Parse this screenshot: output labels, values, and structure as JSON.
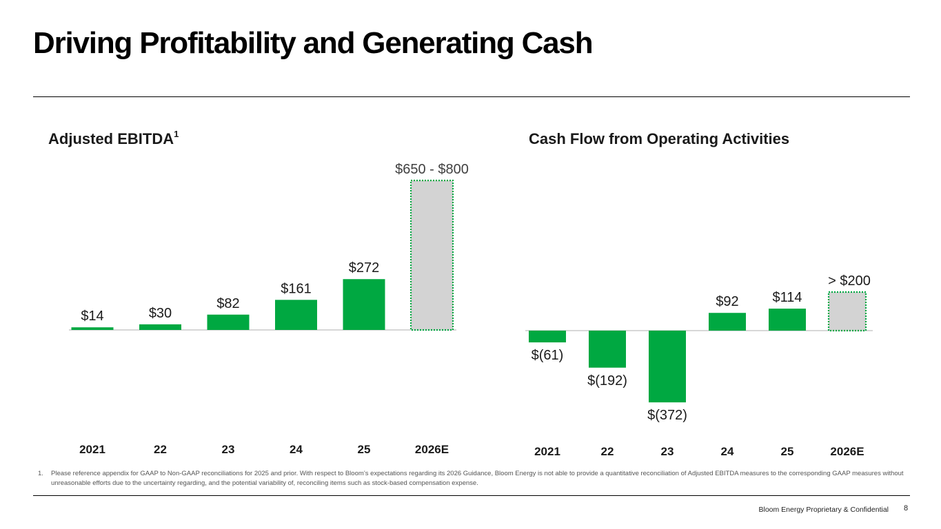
{
  "page": {
    "title": "Driving Profitability and Generating Cash",
    "footnote_number": "1.",
    "footnote_text": "Please reference appendix for GAAP to Non-GAAP reconciliations for 2025 and prior. With respect to Bloom’s expectations regarding its 2026 Guidance, Bloom Energy is not able to provide a quantitative reconciliation of Adjusted EBITDA measures to the corresponding GAAP measures without unreasonable efforts due to the uncertainty regarding, and the potential variability of, reconciling items such as stock-based compensation expense.",
    "footer": "Bloom Energy Proprietary & Confidential",
    "page_number": "8"
  },
  "colors": {
    "bar": "#00A841",
    "forecast_fill": "#D3D3D3",
    "forecast_border": "#00A841",
    "axis": "#BFBFBF"
  },
  "chart_data": [
    {
      "type": "bar",
      "title": "Adjusted EBITDA",
      "title_superscript": "1",
      "categories": [
        "2021",
        "22",
        "23",
        "24",
        "25",
        "2026E"
      ],
      "values": [
        14,
        30,
        82,
        161,
        272,
        800
      ],
      "range_low_2026E": 650,
      "labels": [
        "$14",
        "$30",
        "$82",
        "$161",
        "$272",
        "$650 - $800"
      ],
      "forecast": [
        false,
        false,
        false,
        false,
        false,
        true
      ],
      "ylim": [
        0,
        800
      ]
    },
    {
      "type": "bar",
      "title": "Cash Flow from Operating Activities",
      "categories": [
        "2021",
        "22",
        "23",
        "24",
        "25",
        "2026E"
      ],
      "values": [
        -61,
        -192,
        -372,
        92,
        114,
        200
      ],
      "labels": [
        "$(61)",
        "$(192)",
        "$(372)",
        "$92",
        "$114",
        "> $200"
      ],
      "forecast": [
        false,
        false,
        false,
        false,
        false,
        true
      ],
      "ylim": [
        -372,
        200
      ]
    }
  ]
}
